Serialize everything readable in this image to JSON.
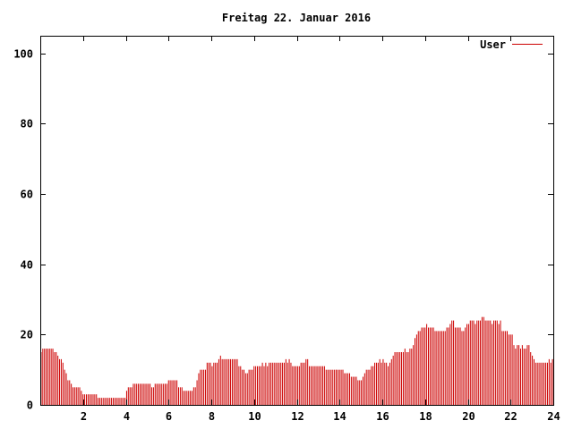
{
  "chart_data": {
    "type": "bar",
    "title": "Freitag 22. Januar 2016",
    "xlabel": "",
    "ylabel": "",
    "xlim": [
      0,
      24
    ],
    "ylim": [
      0,
      105
    ],
    "x_ticks": [
      2,
      4,
      6,
      8,
      10,
      12,
      14,
      16,
      18,
      20,
      22,
      24
    ],
    "y_ticks": [
      0,
      20,
      40,
      60,
      80,
      100
    ],
    "legend_position": "top-right",
    "grid": false,
    "series": [
      {
        "name": "User",
        "color": "#cc0000",
        "step_hours": 0.0833,
        "values": [
          15,
          16,
          16,
          16,
          16,
          16,
          16,
          16,
          15,
          15,
          14,
          13,
          13,
          12,
          10,
          9,
          7,
          7,
          6,
          5,
          5,
          5,
          5,
          5,
          4,
          3,
          3,
          3,
          3,
          3,
          3,
          3,
          3,
          3,
          2,
          2,
          2,
          2,
          2,
          2,
          2,
          2,
          2,
          2,
          2,
          2,
          2,
          2,
          2,
          2,
          2,
          4,
          5,
          5,
          5,
          6,
          6,
          6,
          6,
          6,
          6,
          6,
          6,
          6,
          6,
          6,
          5,
          5,
          6,
          6,
          6,
          6,
          6,
          6,
          6,
          6,
          7,
          7,
          7,
          7,
          7,
          7,
          5,
          5,
          5,
          4,
          4,
          4,
          4,
          4,
          4,
          5,
          5,
          7,
          9,
          10,
          10,
          10,
          10,
          12,
          12,
          12,
          11,
          12,
          12,
          12,
          13,
          14,
          13,
          13,
          13,
          13,
          13,
          13,
          13,
          13,
          13,
          13,
          11,
          11,
          10,
          10,
          9,
          9,
          10,
          10,
          10,
          11,
          11,
          11,
          11,
          11,
          12,
          11,
          12,
          11,
          12,
          12,
          12,
          12,
          12,
          12,
          12,
          12,
          12,
          12,
          13,
          12,
          13,
          12,
          11,
          11,
          11,
          11,
          11,
          12,
          12,
          12,
          13,
          13,
          11,
          11,
          11,
          11,
          11,
          11,
          11,
          11,
          11,
          11,
          10,
          10,
          10,
          10,
          10,
          10,
          10,
          10,
          10,
          10,
          10,
          9,
          9,
          9,
          9,
          8,
          8,
          8,
          8,
          7,
          7,
          7,
          8,
          9,
          10,
          10,
          10,
          11,
          11,
          12,
          12,
          12,
          13,
          12,
          13,
          12,
          12,
          11,
          12,
          13,
          14,
          15,
          15,
          15,
          15,
          15,
          15,
          16,
          15,
          15,
          16,
          16,
          17,
          19,
          20,
          21,
          21,
          22,
          22,
          22,
          23,
          22,
          22,
          22,
          22,
          21,
          21,
          21,
          21,
          21,
          21,
          21,
          22,
          22,
          23,
          24,
          24,
          22,
          22,
          22,
          22,
          21,
          21,
          22,
          23,
          23,
          24,
          24,
          24,
          23,
          24,
          24,
          24,
          25,
          25,
          24,
          24,
          24,
          24,
          23,
          24,
          24,
          24,
          23,
          24,
          21,
          21,
          21,
          21,
          20,
          20,
          20,
          17,
          16,
          17,
          17,
          16,
          17,
          16,
          16,
          17,
          17,
          15,
          14,
          13,
          12,
          12,
          12,
          12,
          12,
          12,
          12,
          12,
          13,
          12,
          13
        ]
      }
    ]
  }
}
